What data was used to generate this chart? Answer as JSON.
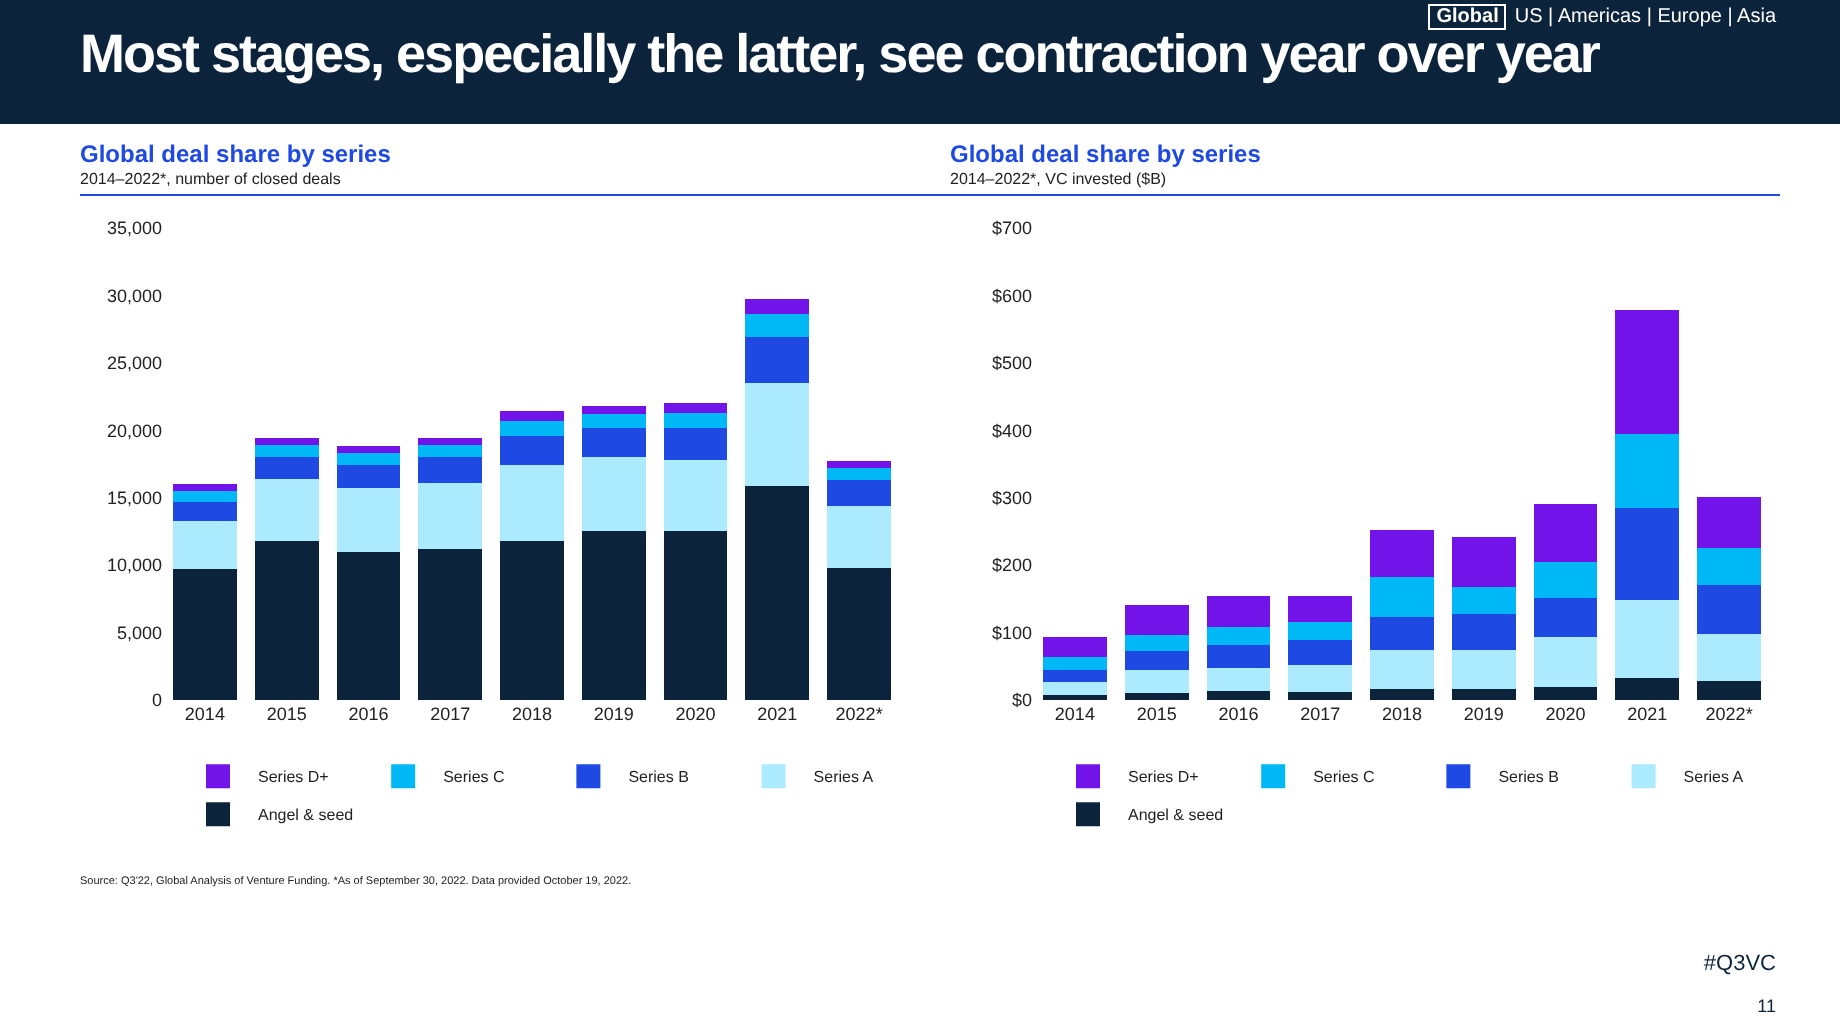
{
  "chart_data": [
    {
      "type": "bar",
      "stacked": true,
      "title": "Global deal share by series",
      "subtitle": "2014–2022*, number of closed deals",
      "categories": [
        "2014",
        "2015",
        "2016",
        "2017",
        "2018",
        "2019",
        "2020",
        "2021",
        "2022*"
      ],
      "series": [
        {
          "name": "Angel & seed",
          "color": "#0c233c",
          "values": [
            9700,
            11800,
            11000,
            11200,
            11800,
            12500,
            12500,
            15900,
            9800
          ]
        },
        {
          "name": "Series A",
          "color": "#aceaff",
          "values": [
            3600,
            4600,
            4700,
            4900,
            5600,
            5500,
            5300,
            7600,
            4600
          ]
        },
        {
          "name": "Series B",
          "color": "#1e49e2",
          "values": [
            1400,
            1600,
            1700,
            1900,
            2200,
            2200,
            2400,
            3400,
            1900
          ]
        },
        {
          "name": "Series C",
          "color": "#00b8f5",
          "values": [
            800,
            900,
            900,
            900,
            1100,
            1000,
            1100,
            1700,
            900
          ]
        },
        {
          "name": "Series D+",
          "color": "#7213ea",
          "values": [
            500,
            500,
            500,
            500,
            700,
            600,
            700,
            1100,
            500
          ]
        }
      ],
      "ylim": [
        0,
        35000
      ],
      "yticks": [
        0,
        {
          "value": 5000,
          "label": "5,000"
        },
        {
          "value": 10000,
          "label": "10,000"
        },
        {
          "value": 15000,
          "label": "15,000"
        },
        {
          "value": 20000,
          "label": "20,000"
        },
        {
          "value": 25000,
          "label": "25,000"
        },
        {
          "value": 30000,
          "label": "30,000"
        },
        {
          "value": 35000,
          "label": "35,000"
        }
      ],
      "legend": "bottom",
      "annotations": [
        "Most stages, especially the latter, see contraction year over year",
        "Global",
        "US | Americas | Europe | Asia",
        "Source: Q3'22, Global Analysis of Venture Funding. *As of September 30, 2022. Data provided October 19, 2022.",
        "#Q3VC",
        "11"
      ]
    },
    {
      "type": "bar",
      "stacked": true,
      "title": "Global deal share by series",
      "subtitle": "2014–2022*, VC invested ($B)",
      "categories": [
        "2014",
        "2015",
        "2016",
        "2017",
        "2018",
        "2019",
        "2020",
        "2021",
        "2022*"
      ],
      "series": [
        {
          "name": "Angel & seed",
          "color": "#0c233c",
          "values": [
            7,
            10,
            14,
            12,
            17,
            17,
            19,
            33,
            28
          ]
        },
        {
          "name": "Series A",
          "color": "#aceaff",
          "values": [
            20,
            35,
            33,
            40,
            57,
            57,
            74,
            115,
            70
          ]
        },
        {
          "name": "Series B",
          "color": "#1e49e2",
          "values": [
            18,
            28,
            35,
            37,
            49,
            54,
            59,
            137,
            72
          ]
        },
        {
          "name": "Series C",
          "color": "#00b8f5",
          "values": [
            19,
            23,
            27,
            26,
            60,
            39,
            53,
            109,
            56
          ]
        },
        {
          "name": "Series D+",
          "color": "#7213ea",
          "values": [
            29,
            45,
            45,
            39,
            69,
            75,
            86,
            185,
            75
          ]
        }
      ],
      "ylim": [
        0,
        700
      ],
      "yticks": [
        {
          "value": 0,
          "label": "$0"
        },
        {
          "value": 100,
          "label": "$100"
        },
        {
          "value": 200,
          "label": "$200"
        },
        {
          "value": 300,
          "label": "$300"
        },
        {
          "value": 400,
          "label": "$400"
        },
        {
          "value": 500,
          "label": "$500"
        },
        {
          "value": 600,
          "label": "$600"
        },
        {
          "value": 700,
          "label": "$700"
        }
      ],
      "legend": "bottom"
    }
  ]
}
